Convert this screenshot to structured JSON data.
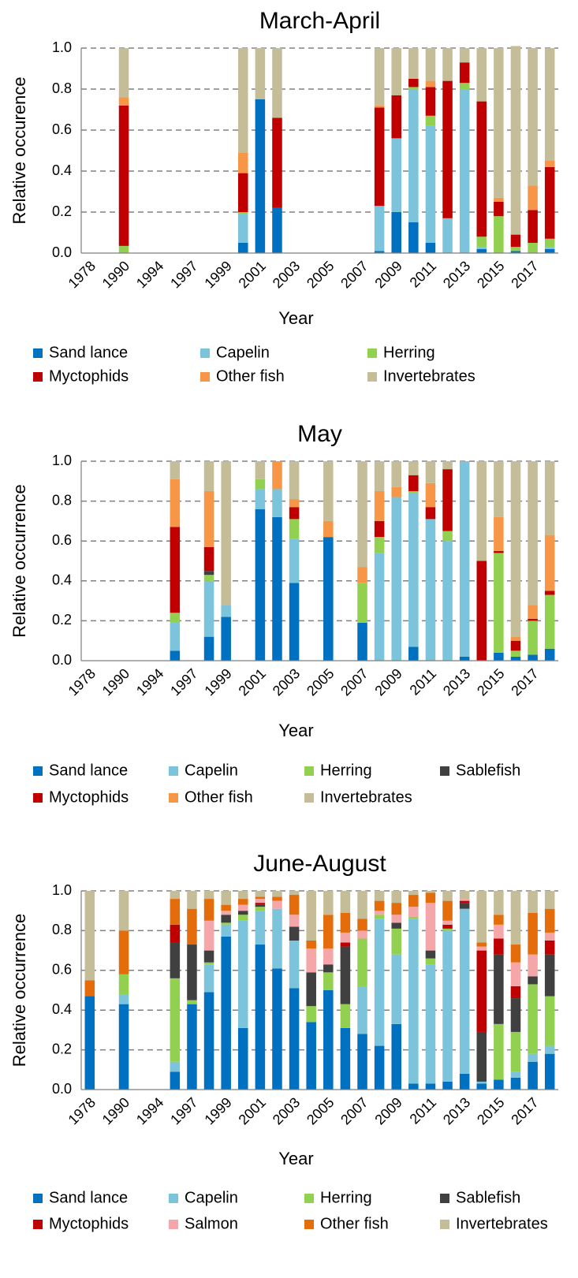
{
  "chart_data": [
    {
      "type": "bar",
      "stacked": true,
      "title": "March-April",
      "x_label": "Year",
      "y_label": "Relative occurence",
      "categories": [
        "1978",
        null,
        "1990",
        null,
        "1994",
        null,
        "1997",
        null,
        "1999",
        null,
        "2001",
        null,
        "2003",
        null,
        "2005",
        null,
        "2007",
        null,
        "2009",
        null,
        "2011",
        null,
        "2013",
        null,
        "2015",
        null,
        "2017",
        null
      ],
      "series": [
        {
          "name": "Sand lance",
          "color": "#0070c0",
          "values": [
            null,
            null,
            0,
            null,
            null,
            null,
            null,
            null,
            null,
            0.05,
            0.75,
            0.22,
            null,
            null,
            null,
            null,
            null,
            0.01,
            0.2,
            0.15,
            0.05,
            0,
            0,
            0.02,
            0,
            0.01,
            0,
            0.02
          ]
        },
        {
          "name": "Capelin",
          "color": "#7cc4dc",
          "values": [
            null,
            null,
            0,
            null,
            null,
            null,
            null,
            null,
            null,
            0.14,
            0,
            0,
            null,
            null,
            null,
            null,
            null,
            0.22,
            0.36,
            0.65,
            0.57,
            0.17,
            0.8,
            0.01,
            0,
            0,
            0,
            0.01
          ]
        },
        {
          "name": "Herring",
          "color": "#92d050",
          "values": [
            null,
            null,
            0.035,
            null,
            null,
            null,
            null,
            null,
            null,
            0.01,
            0,
            0,
            null,
            null,
            null,
            null,
            null,
            0,
            0,
            0.01,
            0.05,
            0,
            0.03,
            0.05,
            0.18,
            0.02,
            0.05,
            0.04
          ]
        },
        {
          "name": "Myctophids",
          "color": "#c00000",
          "values": [
            null,
            null,
            0.685,
            null,
            null,
            null,
            null,
            null,
            null,
            0.19,
            0,
            0.44,
            null,
            null,
            null,
            null,
            null,
            0.48,
            0.21,
            0.04,
            0.14,
            0.67,
            0.1,
            0.66,
            0.07,
            0.06,
            0.16,
            0.35
          ]
        },
        {
          "name": "Other fish",
          "color": "#f79646",
          "values": [
            null,
            null,
            0.04,
            null,
            null,
            null,
            null,
            null,
            null,
            0.1,
            0,
            0,
            null,
            null,
            null,
            null,
            null,
            0.01,
            0,
            0,
            0.03,
            0,
            0,
            0,
            0.02,
            0,
            0.12,
            0.03
          ]
        },
        {
          "name": "Invertebrates",
          "color": "#c4bd97",
          "values": [
            null,
            null,
            0.24,
            null,
            null,
            null,
            null,
            null,
            null,
            0.51,
            0.25,
            0.34,
            null,
            null,
            null,
            null,
            null,
            0.28,
            0.23,
            0.15,
            0.16,
            0.16,
            0.07,
            0.26,
            0.73,
            0.92,
            0.67,
            0.55
          ]
        }
      ],
      "ylim": [
        0,
        1
      ],
      "yticks": [
        {
          "value": 0,
          "label": "0.0"
        },
        {
          "value": 0.2,
          "label": "0.2"
        },
        {
          "value": 0.4,
          "label": "0.4"
        },
        {
          "value": 0.6,
          "label": "0.6"
        },
        {
          "value": 0.8,
          "label": "0.8"
        },
        {
          "value": 1,
          "label": "1.0"
        }
      ],
      "grid": true
    },
    {
      "type": "bar",
      "stacked": true,
      "title": "May",
      "x_label": "Year",
      "y_label": "Relative occurrence",
      "categories": [
        "1978",
        null,
        "1990",
        null,
        "1994",
        null,
        "1997",
        null,
        "1999",
        null,
        "2001",
        null,
        "2003",
        null,
        "2005",
        null,
        "2007",
        null,
        "2009",
        null,
        "2011",
        null,
        "2013",
        null,
        "2015",
        null,
        "2017",
        null
      ],
      "series": [
        {
          "name": "Sand lance",
          "color": "#0070c0",
          "values": [
            null,
            null,
            null,
            null,
            null,
            0.05,
            null,
            0.12,
            0.22,
            null,
            0.76,
            0.72,
            0.39,
            null,
            0.62,
            null,
            0.19,
            0,
            0,
            0.07,
            0,
            0,
            0.02,
            0,
            0.04,
            0.02,
            0.03,
            0.06
          ]
        },
        {
          "name": "Capelin",
          "color": "#7cc4dc",
          "values": [
            null,
            null,
            null,
            null,
            null,
            0.14,
            null,
            0.28,
            0.06,
            null,
            0.1,
            0.14,
            0.22,
            null,
            0,
            null,
            0,
            0.54,
            0.82,
            0.77,
            0.71,
            0.6,
            0.98,
            0,
            0,
            0,
            0,
            0
          ]
        },
        {
          "name": "Herring",
          "color": "#92d050",
          "values": [
            null,
            null,
            null,
            null,
            null,
            0.05,
            null,
            0.03,
            0,
            null,
            0.05,
            0,
            0.1,
            null,
            0,
            null,
            0.2,
            0.08,
            0,
            0.01,
            0,
            0.05,
            0,
            0,
            0.5,
            0.03,
            0.17,
            0.27
          ]
        },
        {
          "name": "Sablefish",
          "color": "#404040",
          "values": [
            null,
            null,
            null,
            null,
            null,
            0,
            null,
            0.02,
            0,
            null,
            0,
            0,
            0,
            null,
            0,
            null,
            0,
            0,
            0,
            0,
            0,
            0,
            0,
            0,
            0,
            0,
            0,
            0
          ]
        },
        {
          "name": "Myctophids",
          "color": "#c00000",
          "values": [
            null,
            null,
            null,
            null,
            null,
            0.43,
            null,
            0.12,
            0,
            null,
            0,
            0,
            0.06,
            null,
            0,
            null,
            0,
            0.08,
            0,
            0.08,
            0.06,
            0.31,
            0,
            0.5,
            0.01,
            0.05,
            0.01,
            0.02
          ]
        },
        {
          "name": "Other fish",
          "color": "#f79646",
          "values": [
            null,
            null,
            null,
            null,
            null,
            0.24,
            null,
            0.28,
            0,
            null,
            0,
            0.14,
            0.04,
            null,
            0.08,
            null,
            0.08,
            0.15,
            0.05,
            0,
            0.12,
            0,
            0,
            0,
            0.17,
            0.02,
            0.07,
            0.28
          ]
        },
        {
          "name": "Invertebrates",
          "color": "#c4bd97",
          "values": [
            null,
            null,
            null,
            null,
            null,
            0.09,
            null,
            0.15,
            0.72,
            null,
            0.09,
            0,
            0.19,
            null,
            0.3,
            null,
            0.53,
            0.15,
            0.13,
            0.07,
            0.11,
            0.04,
            0,
            0.5,
            0.28,
            0.88,
            0.72,
            0.37
          ]
        }
      ],
      "ylim": [
        0,
        1
      ],
      "yticks": [
        {
          "value": 0,
          "label": "0.0"
        },
        {
          "value": 0.2,
          "label": "0.2"
        },
        {
          "value": 0.4,
          "label": "0.4"
        },
        {
          "value": 0.6,
          "label": "0.6"
        },
        {
          "value": 0.8,
          "label": "0.8"
        },
        {
          "value": 1,
          "label": "1.0"
        }
      ],
      "grid": true
    },
    {
      "type": "bar",
      "stacked": true,
      "title": "June-August",
      "x_label": "Year",
      "y_label": "Relative occurrence",
      "categories": [
        "1978",
        null,
        "1990",
        null,
        "1994",
        null,
        "1997",
        null,
        "1999",
        null,
        "2001",
        null,
        "2003",
        null,
        "2005",
        null,
        "2007",
        null,
        "2009",
        null,
        "2011",
        null,
        "2013",
        null,
        "2015",
        null,
        "2017",
        null
      ],
      "series": [
        {
          "name": "Sand lance",
          "color": "#0070c0",
          "values": [
            0.47,
            null,
            0.43,
            null,
            null,
            0.09,
            0.43,
            0.49,
            0.77,
            0.31,
            0.73,
            0.61,
            0.51,
            0.34,
            0.5,
            0.31,
            0.28,
            0.22,
            0.33,
            0.03,
            0.03,
            0.04,
            0.08,
            0.03,
            0.05,
            0.06,
            0.14,
            0.18
          ]
        },
        {
          "name": "Capelin",
          "color": "#7cc4dc",
          "values": [
            0,
            null,
            0.05,
            null,
            null,
            0.05,
            0,
            0.14,
            0.06,
            0.54,
            0.17,
            0.3,
            0.24,
            0,
            0,
            0,
            0.24,
            0.64,
            0.35,
            0.83,
            0.6,
            0.76,
            0.83,
            0.01,
            0,
            0.03,
            0.04,
            0.04
          ]
        },
        {
          "name": "Herring",
          "color": "#92d050",
          "values": [
            0,
            null,
            0.1,
            null,
            null,
            0.42,
            0.02,
            0.01,
            0.01,
            0.03,
            0.02,
            0,
            0,
            0.08,
            0.09,
            0.12,
            0.24,
            0.02,
            0.13,
            0.01,
            0.03,
            0.01,
            0,
            0,
            0.28,
            0.2,
            0.35,
            0.25
          ]
        },
        {
          "name": "Sablefish",
          "color": "#404040",
          "values": [
            0,
            null,
            0,
            null,
            null,
            0.18,
            0.28,
            0.06,
            0.04,
            0.02,
            0.01,
            0,
            0.07,
            0.17,
            0.04,
            0.29,
            0,
            0,
            0.03,
            0,
            0.04,
            0,
            0.03,
            0.25,
            0.35,
            0.17,
            0.04,
            0.21
          ]
        },
        {
          "name": "Myctophids",
          "color": "#c00000",
          "values": [
            0,
            null,
            0,
            null,
            null,
            0.09,
            0,
            0,
            0,
            0,
            0.01,
            0,
            0,
            0,
            0,
            0.02,
            0,
            0,
            0,
            0,
            0,
            0.02,
            0.01,
            0.41,
            0.08,
            0.06,
            0,
            0.07
          ]
        },
        {
          "name": "Salmon",
          "color": "#f4a6a8",
          "values": [
            0,
            null,
            0,
            null,
            null,
            0,
            0,
            0.15,
            0.02,
            0.03,
            0.02,
            0.04,
            0.06,
            0.12,
            0.08,
            0.05,
            0.04,
            0.02,
            0.04,
            0.05,
            0.24,
            0.02,
            0.01,
            0.02,
            0.07,
            0.12,
            0.11,
            0.04
          ]
        },
        {
          "name": "Other fish",
          "color": "#e46c0a",
          "values": [
            0.08,
            null,
            0.22,
            null,
            null,
            0.13,
            0.18,
            0.11,
            0.03,
            0.03,
            0.01,
            0.02,
            0.1,
            0.04,
            0.17,
            0.1,
            0.06,
            0.05,
            0.06,
            0.06,
            0.05,
            0.1,
            0,
            0.02,
            0.05,
            0.09,
            0.21,
            0.12
          ]
        },
        {
          "name": "Invertebrates",
          "color": "#c4bd97",
          "values": [
            0.45,
            null,
            0.2,
            null,
            null,
            0.04,
            0.09,
            0.04,
            0.07,
            0.04,
            0.03,
            0.03,
            0.02,
            0.25,
            0.12,
            0.11,
            0.14,
            0.05,
            0.06,
            0.02,
            0.01,
            0.05,
            0.04,
            0.26,
            0.12,
            0.27,
            0.11,
            0.09
          ]
        }
      ],
      "ylim": [
        0,
        1
      ],
      "yticks": [
        {
          "value": 0,
          "label": "0.0"
        },
        {
          "value": 0.2,
          "label": "0.2"
        },
        {
          "value": 0.4,
          "label": "0.4"
        },
        {
          "value": 0.6,
          "label": "0.6"
        },
        {
          "value": 0.8,
          "label": "0.8"
        },
        {
          "value": 1,
          "label": "1.0"
        }
      ],
      "grid": true
    }
  ]
}
